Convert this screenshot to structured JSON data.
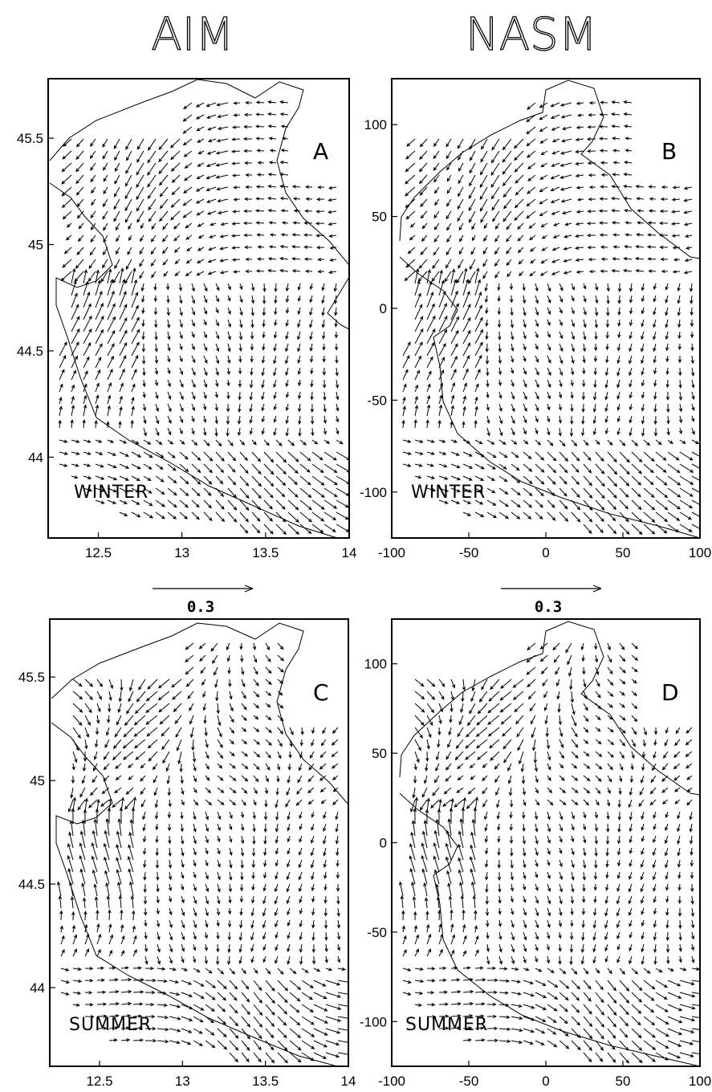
{
  "titles": {
    "left": "AIM",
    "right": "NASM"
  },
  "scale": {
    "label": "0.3"
  },
  "chart_data": [
    {
      "type": "vector-field",
      "panel": "A",
      "season": "WINTER",
      "xlim": [
        12.2,
        14.0
      ],
      "ylim": [
        43.62,
        45.78
      ],
      "xticks": [
        "12.5",
        "13",
        "13.5",
        "14"
      ],
      "xtick_values": [
        12.5,
        13,
        13.5,
        14
      ],
      "yticks": [
        "44",
        "44.5",
        "45",
        "45.5"
      ],
      "ytick_values": [
        44,
        44.5,
        45,
        45.5
      ]
    },
    {
      "type": "vector-field",
      "panel": "B",
      "season": "WINTER",
      "xlim": [
        -100,
        100
      ],
      "ylim": [
        -125,
        125
      ],
      "xticks": [
        "-100",
        "-50",
        "0",
        "50",
        "100"
      ],
      "xtick_values": [
        -100,
        -50,
        0,
        50,
        100
      ],
      "yticks": [
        "-100",
        "-50",
        "0",
        "50",
        "100"
      ],
      "ytick_values": [
        -100,
        -50,
        0,
        50,
        100
      ]
    },
    {
      "type": "vector-field",
      "panel": "C",
      "season": "SUMMER",
      "xlim": [
        12.2,
        14.0
      ],
      "ylim": [
        43.62,
        45.78
      ],
      "xticks": [
        "12.5",
        "13",
        "13.5",
        "14"
      ],
      "xtick_values": [
        12.5,
        13,
        13.5,
        14
      ],
      "yticks": [
        "44",
        "44.5",
        "45",
        "45.5"
      ],
      "ytick_values": [
        44,
        44.5,
        45,
        45.5
      ]
    },
    {
      "type": "vector-field",
      "panel": "D",
      "season": "SUMMER",
      "xlim": [
        -100,
        100
      ],
      "ylim": [
        -125,
        125
      ],
      "xticks": [
        "-100",
        "-50",
        "0",
        "50",
        "100"
      ],
      "xtick_values": [
        -100,
        -50,
        0,
        50,
        100
      ],
      "yticks": [
        "-100",
        "-50",
        "0",
        "50",
        "100"
      ],
      "ytick_values": [
        -100,
        -50,
        0,
        50,
        100
      ]
    }
  ]
}
